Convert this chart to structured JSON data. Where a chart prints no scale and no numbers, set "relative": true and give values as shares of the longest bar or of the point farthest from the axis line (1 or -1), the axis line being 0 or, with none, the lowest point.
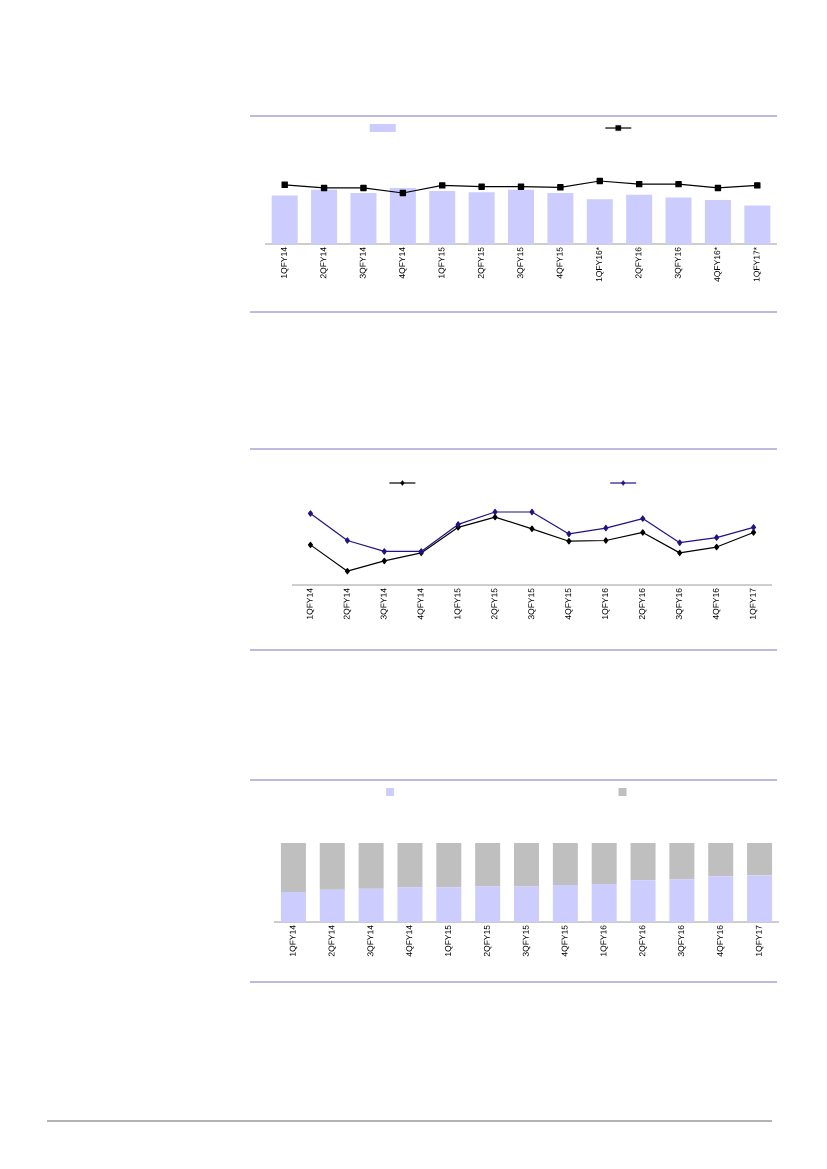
{
  "chart_data": [
    {
      "type": "bar",
      "relative": true,
      "categories": [
        "1QFY14",
        "2QFY14",
        "3QFY14",
        "4QFY14",
        "1QFY15",
        "2QFY15",
        "3QFY15",
        "4QFY15",
        "1QFY16*",
        "2QFY16",
        "3QFY16",
        "4QFY16*",
        "1QFY17*"
      ],
      "series": [
        {
          "type": "bar",
          "color": "#ccccff",
          "values": [
            0.77,
            0.86,
            0.81,
            0.89,
            0.84,
            0.82,
            0.86,
            0.81,
            0.71,
            0.78,
            0.74,
            0.7,
            0.61
          ]
        },
        {
          "type": "line",
          "marker": "square",
          "color": "#000000",
          "values": [
            0.94,
            0.89,
            0.89,
            0.81,
            0.93,
            0.91,
            0.91,
            0.9,
            1,
            0.95,
            0.95,
            0.89,
            0.93
          ]
        }
      ]
    },
    {
      "type": "line",
      "relative": true,
      "marker": "diamond",
      "categories": [
        "1QFY14",
        "2QFY14",
        "3QFY14",
        "4QFY14",
        "1QFY15",
        "2QFY15",
        "3QFY15",
        "4QFY15",
        "1QFY16",
        "2QFY16",
        "3QFY16",
        "4QFY16",
        "1QFY17"
      ],
      "series": [
        {
          "color": "#000000",
          "values": [
            0.55,
            0.19,
            0.33,
            0.44,
            0.79,
            0.93,
            0.77,
            0.6,
            0.61,
            0.72,
            0.44,
            0.52,
            0.72
          ]
        },
        {
          "color": "#1f1385",
          "values": [
            0.98,
            0.61,
            0.46,
            0.46,
            0.83,
            1,
            1,
            0.7,
            0.78,
            0.91,
            0.58,
            0.65,
            0.79
          ]
        }
      ]
    },
    {
      "type": "bar",
      "relative": true,
      "stacked": true,
      "categories": [
        "1QFY14",
        "2QFY14",
        "3QFY14",
        "4QFY14",
        "1QFY15",
        "2QFY15",
        "3QFY15",
        "4QFY15",
        "1QFY16",
        "2QFY16",
        "3QFY16",
        "4QFY16",
        "1QFY17"
      ],
      "series": [
        {
          "color": "#ccccff",
          "values": [
            0.38,
            0.41,
            0.42,
            0.44,
            0.44,
            0.45,
            0.45,
            0.47,
            0.48,
            0.53,
            0.54,
            0.58,
            0.59
          ]
        },
        {
          "color": "#bfbfbf",
          "values": [
            0.62,
            0.59,
            0.58,
            0.56,
            0.56,
            0.55,
            0.55,
            0.53,
            0.52,
            0.47,
            0.46,
            0.42,
            0.41
          ]
        }
      ]
    }
  ]
}
